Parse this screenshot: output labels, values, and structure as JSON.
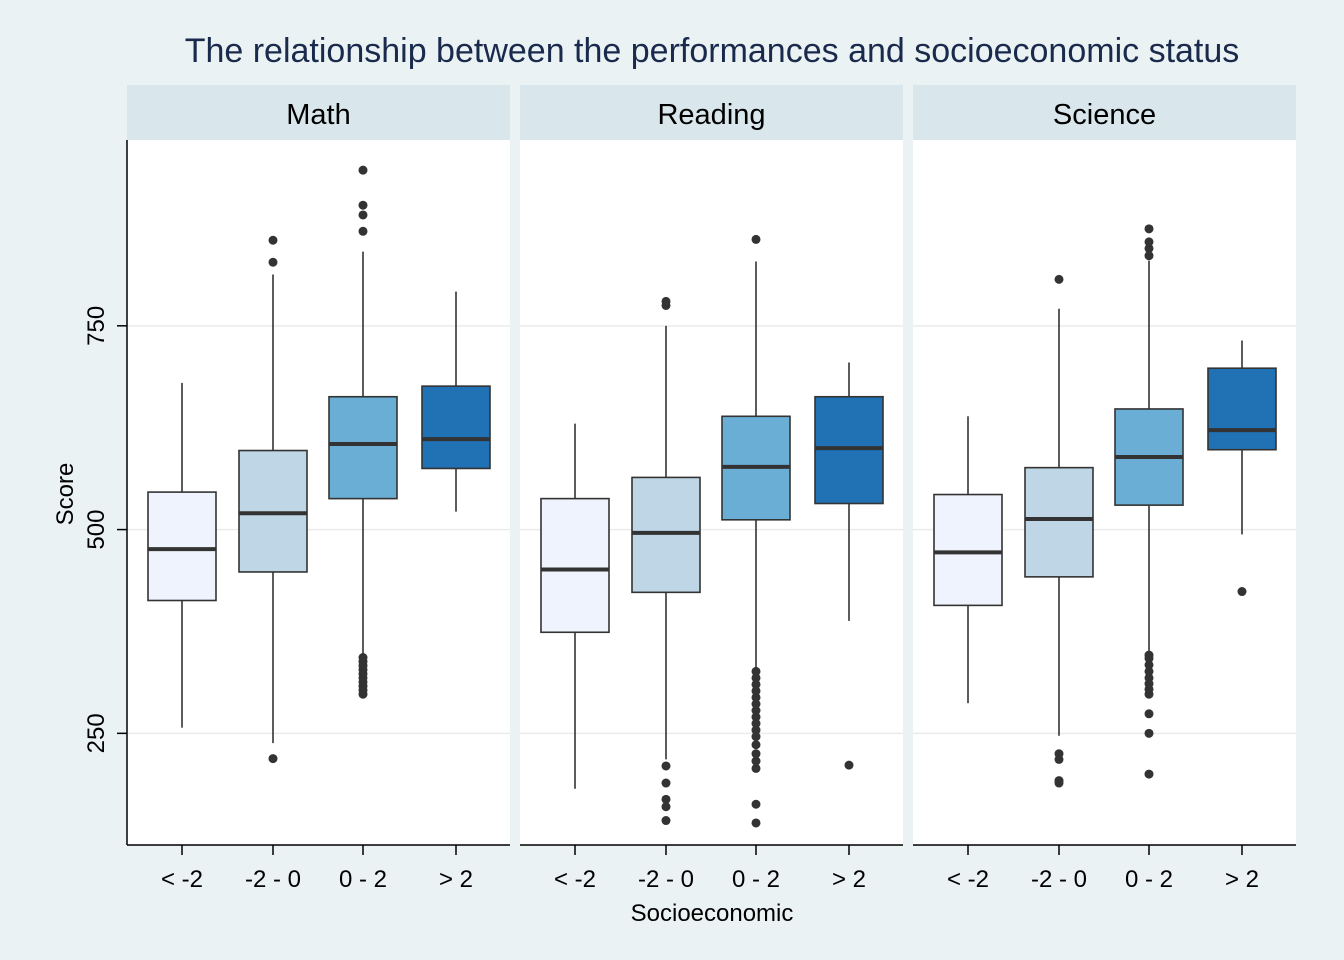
{
  "chart_data": {
    "type": "boxplot",
    "title": "The relationship between the performances and socioeconomic status",
    "xlabel": "Socioeconomic",
    "ylabel": "Score",
    "ylim": [
      113,
      978
    ],
    "yticks": [
      250,
      500,
      750
    ],
    "categories": [
      "< -2",
      "-2 - 0",
      "0 - 2",
      "> 2"
    ],
    "category_colors": [
      "#eef3fd",
      "#bed6e6",
      "#6aaed6",
      "#2171b5"
    ],
    "grid": true,
    "facets": [
      {
        "name": "Math",
        "boxes": [
          {
            "category": "< -2",
            "whisker_low": 257,
            "q1": 413,
            "median": 476,
            "q3": 546,
            "whisker_high": 680,
            "outliers": []
          },
          {
            "category": "-2 - 0",
            "whisker_low": 238,
            "q1": 448,
            "median": 520,
            "q3": 597,
            "whisker_high": 813,
            "outliers": [
              219,
              828,
              855
            ]
          },
          {
            "category": "0 - 2",
            "whisker_low": 306,
            "q1": 538,
            "median": 605,
            "q3": 663,
            "whisker_high": 841,
            "outliers": [
              298,
              303,
              308,
              313,
              318,
              323,
              328,
              333,
              338,
              343,
              866,
              886,
              898,
              941
            ]
          },
          {
            "category": "> 2",
            "whisker_low": 522,
            "q1": 575,
            "median": 611,
            "q3": 676,
            "whisker_high": 792,
            "outliers": []
          }
        ]
      },
      {
        "name": "Reading",
        "boxes": [
          {
            "category": "< -2",
            "whisker_low": 182,
            "q1": 374,
            "median": 451,
            "q3": 538,
            "whisker_high": 630,
            "outliers": []
          },
          {
            "category": "-2 - 0",
            "whisker_low": 218,
            "q1": 423,
            "median": 496,
            "q3": 564,
            "whisker_high": 750,
            "outliers": [
              143,
              160,
              169,
              189,
              210,
              775,
              780
            ]
          },
          {
            "category": "0 - 2",
            "whisker_low": 330,
            "q1": 512,
            "median": 577,
            "q3": 639,
            "whisker_high": 829,
            "outliers": [
              140,
              163,
              207,
              216,
              225,
              236,
              246,
              254,
              262,
              270,
              278,
              286,
              294,
              302,
              310,
              318,
              326,
              856
            ]
          },
          {
            "category": "> 2",
            "whisker_low": 388,
            "q1": 532,
            "median": 600,
            "q3": 663,
            "whisker_high": 705,
            "outliers": [
              211
            ]
          }
        ]
      },
      {
        "name": "Science",
        "boxes": [
          {
            "category": "< -2",
            "whisker_low": 287,
            "q1": 407,
            "median": 472,
            "q3": 543,
            "whisker_high": 639,
            "outliers": []
          },
          {
            "category": "-2 - 0",
            "whisker_low": 247,
            "q1": 442,
            "median": 513,
            "q3": 576,
            "whisker_high": 771,
            "outliers": [
              189,
              192,
              218,
              225,
              807
            ]
          },
          {
            "category": "0 - 2",
            "whisker_low": 348,
            "q1": 530,
            "median": 589,
            "q3": 648,
            "whisker_high": 830,
            "outliers": [
              200,
              250,
              274,
              298,
              304,
              311,
              318,
              326,
              334,
              342,
              346,
              836,
              845,
              853,
              869
            ]
          },
          {
            "category": "> 2",
            "whisker_low": 494,
            "q1": 598,
            "median": 622,
            "q3": 698,
            "whisker_high": 732,
            "outliers": [
              424
            ]
          }
        ]
      }
    ]
  }
}
